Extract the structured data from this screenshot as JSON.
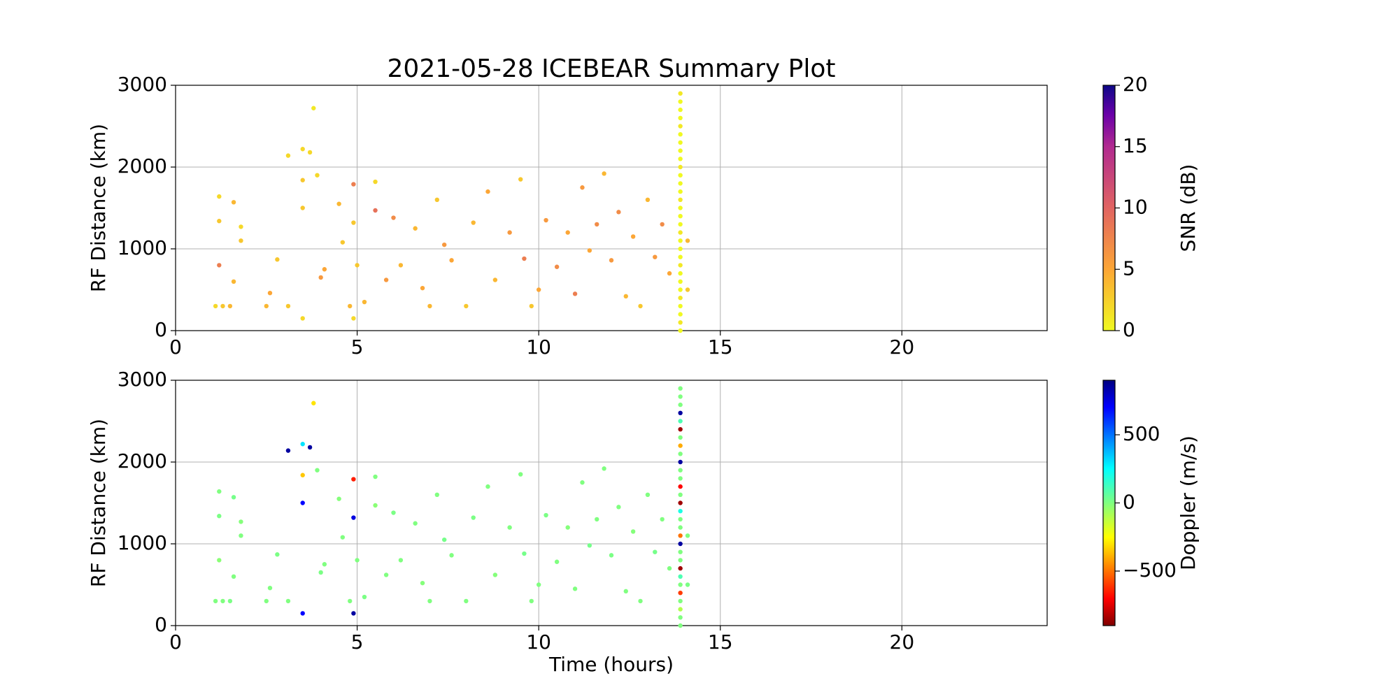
{
  "chart_data": [
    {
      "type": "scatter",
      "title": "2021-05-28 ICEBEAR Summary Plot",
      "ylabel": "RF Distance (km)",
      "xlim": [
        0,
        24
      ],
      "xticks": [
        0,
        5,
        10,
        15,
        20
      ],
      "ylim": [
        0,
        3000
      ],
      "yticks": [
        0,
        1000,
        2000,
        3000
      ],
      "grid": true,
      "colorbar": {
        "label": "SNR (dB)",
        "colormap": "plasma_r",
        "lim": [
          0,
          20
        ],
        "ticks": [
          0,
          5,
          10,
          15,
          20
        ]
      },
      "x": [
        1.1,
        1.2,
        1.2,
        1.2,
        1.3,
        1.5,
        1.6,
        1.6,
        1.8,
        1.8,
        2.5,
        2.6,
        2.8,
        3.1,
        3.1,
        3.5,
        3.5,
        3.5,
        3.5,
        3.7,
        3.8,
        3.9,
        4.0,
        4.1,
        4.5,
        4.6,
        4.8,
        4.9,
        4.9,
        4.9,
        5.0,
        5.2,
        5.5,
        5.5,
        5.8,
        6.0,
        6.2,
        6.6,
        6.8,
        7.0,
        7.2,
        7.4,
        7.6,
        8.0,
        8.2,
        8.6,
        8.8,
        9.2,
        9.5,
        9.6,
        9.8,
        10.0,
        10.2,
        10.5,
        10.8,
        11.0,
        11.2,
        11.4,
        11.6,
        11.8,
        12.0,
        12.2,
        12.4,
        12.6,
        12.8,
        13.0,
        13.2,
        13.4,
        13.6,
        14.1,
        14.1,
        13.9,
        13.9,
        13.9,
        13.9,
        13.9,
        13.9,
        13.9,
        13.9,
        13.9,
        13.9,
        13.9,
        13.9,
        13.9,
        13.9,
        13.9,
        13.9,
        13.9,
        13.9,
        13.9,
        13.9,
        13.9,
        13.9,
        13.9,
        13.9,
        13.9,
        13.9,
        13.9,
        13.9,
        13.9,
        13.9
      ],
      "y": [
        300,
        1340,
        1640,
        800,
        300,
        300,
        600,
        1570,
        1100,
        1270,
        300,
        460,
        870,
        300,
        2140,
        2220,
        1500,
        150,
        1840,
        2180,
        2720,
        1900,
        650,
        750,
        1550,
        1080,
        300,
        1790,
        1320,
        150,
        800,
        350,
        1820,
        1470,
        620,
        1380,
        800,
        1250,
        520,
        300,
        1600,
        1050,
        860,
        300,
        1320,
        1700,
        620,
        1200,
        1850,
        880,
        300,
        500,
        1350,
        780,
        1200,
        450,
        1750,
        980,
        1300,
        1920,
        860,
        1450,
        420,
        1150,
        300,
        1600,
        900,
        1300,
        700,
        500,
        1100,
        0,
        100,
        200,
        300,
        400,
        500,
        600,
        700,
        800,
        900,
        1000,
        1100,
        1200,
        1300,
        1400,
        1500,
        1600,
        1700,
        1800,
        1900,
        2000,
        2100,
        2200,
        2300,
        2400,
        2500,
        2600,
        2700,
        2800,
        2900
      ],
      "c": [
        2,
        3,
        2,
        8,
        3,
        4,
        4,
        4,
        3,
        2,
        4,
        5,
        3,
        3,
        2,
        2,
        3,
        2,
        3,
        2,
        1,
        2,
        6,
        5,
        4,
        3,
        4,
        8,
        3,
        2,
        3,
        4,
        2,
        9,
        6,
        7,
        4,
        4,
        5,
        4,
        3,
        6,
        5,
        3,
        4,
        5,
        4,
        6,
        3,
        8,
        3,
        5,
        6,
        7,
        5,
        8,
        6,
        5,
        7,
        4,
        6,
        7,
        4,
        5,
        3,
        4,
        6,
        7,
        5,
        3,
        4,
        0,
        1,
        0,
        0,
        1,
        0,
        0,
        0,
        1,
        0,
        0,
        0,
        1,
        0,
        0,
        0,
        1,
        0,
        0,
        0,
        1,
        0,
        0,
        0,
        0,
        1,
        0,
        0,
        0,
        1
      ]
    },
    {
      "type": "scatter",
      "ylabel": "RF Distance (km)",
      "xlabel": "Time (hours)",
      "xlim": [
        0,
        24
      ],
      "xticks": [
        0,
        5,
        10,
        15,
        20
      ],
      "ylim": [
        0,
        3000
      ],
      "yticks": [
        0,
        1000,
        2000,
        3000
      ],
      "grid": true,
      "colorbar": {
        "label": "Doppler (m/s)",
        "colormap": "jet_r",
        "lim": [
          -900,
          900
        ],
        "ticks": [
          {
            "value": -500,
            "label": "−500"
          },
          0,
          500
        ]
      },
      "x": [
        1.1,
        1.2,
        1.2,
        1.2,
        1.3,
        1.5,
        1.6,
        1.6,
        1.8,
        1.8,
        2.5,
        2.6,
        2.8,
        3.1,
        3.1,
        3.5,
        3.5,
        3.5,
        3.5,
        3.7,
        3.8,
        3.9,
        4.0,
        4.1,
        4.5,
        4.6,
        4.8,
        4.9,
        4.9,
        4.9,
        5.0,
        5.2,
        5.5,
        5.5,
        5.8,
        6.0,
        6.2,
        6.6,
        6.8,
        7.0,
        7.2,
        7.4,
        7.6,
        8.0,
        8.2,
        8.6,
        8.8,
        9.2,
        9.5,
        9.6,
        9.8,
        10.0,
        10.2,
        10.5,
        10.8,
        11.0,
        11.2,
        11.4,
        11.6,
        11.8,
        12.0,
        12.2,
        12.4,
        12.6,
        12.8,
        13.0,
        13.2,
        13.4,
        13.6,
        14.1,
        14.1,
        13.9,
        13.9,
        13.9,
        13.9,
        13.9,
        13.9,
        13.9,
        13.9,
        13.9,
        13.9,
        13.9,
        13.9,
        13.9,
        13.9,
        13.9,
        13.9,
        13.9,
        13.9,
        13.9,
        13.9,
        13.9,
        13.9,
        13.9,
        13.9,
        13.9,
        13.9,
        13.9,
        13.9,
        13.9,
        13.9
      ],
      "y": [
        300,
        1340,
        1640,
        800,
        300,
        300,
        600,
        1570,
        1100,
        1270,
        300,
        460,
        870,
        300,
        2140,
        2220,
        1500,
        150,
        1840,
        2180,
        2720,
        1900,
        650,
        750,
        1550,
        1080,
        300,
        1790,
        1320,
        150,
        800,
        350,
        1820,
        1470,
        620,
        1380,
        800,
        1250,
        520,
        300,
        1600,
        1050,
        860,
        300,
        1320,
        1700,
        620,
        1200,
        1850,
        880,
        300,
        500,
        1350,
        780,
        1200,
        450,
        1750,
        980,
        1300,
        1920,
        860,
        1450,
        420,
        1150,
        300,
        1600,
        900,
        1300,
        700,
        500,
        1100,
        0,
        100,
        200,
        300,
        400,
        500,
        600,
        700,
        800,
        900,
        1000,
        1100,
        1200,
        1300,
        1400,
        1500,
        1600,
        1700,
        1800,
        1900,
        2000,
        2100,
        2200,
        2300,
        2400,
        2500,
        2600,
        2700,
        2800,
        2900
      ],
      "c": [
        0,
        10,
        0,
        -20,
        0,
        10,
        0,
        20,
        0,
        -10,
        0,
        0,
        10,
        0,
        850,
        300,
        700,
        700,
        -350,
        850,
        -300,
        0,
        10,
        0,
        -10,
        0,
        0,
        -650,
        750,
        850,
        0,
        10,
        0,
        -20,
        0,
        10,
        0,
        0,
        -10,
        0,
        0,
        20,
        0,
        0,
        10,
        0,
        -10,
        0,
        0,
        20,
        0,
        0,
        10,
        0,
        -10,
        0,
        0,
        20,
        0,
        0,
        10,
        0,
        0,
        -10,
        0,
        0,
        20,
        0,
        0,
        10,
        0,
        0,
        0,
        -100,
        0,
        -600,
        0,
        100,
        -850,
        0,
        0,
        850,
        -500,
        0,
        0,
        200,
        -850,
        0,
        -700,
        0,
        0,
        850,
        0,
        -400,
        0,
        -850,
        100,
        850,
        0,
        0,
        0
      ]
    }
  ]
}
